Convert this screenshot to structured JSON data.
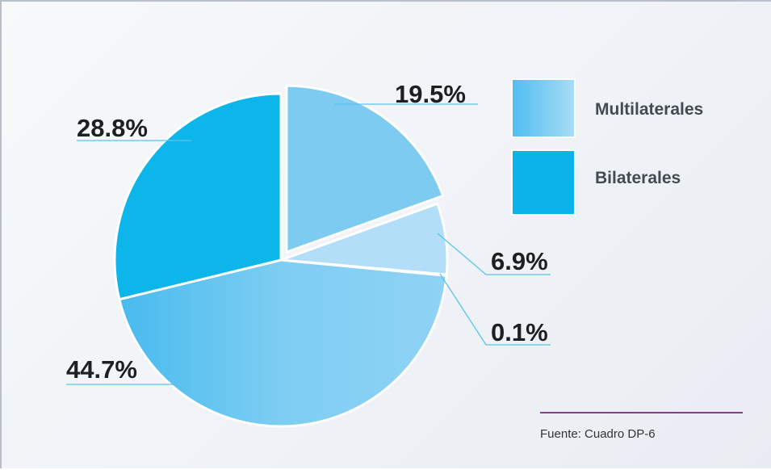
{
  "chart_data": {
    "type": "pie",
    "series": [
      {
        "label": "19.5%",
        "value": 19.5,
        "group": "Multilaterales",
        "color": "#7ecbf2",
        "exploded": true
      },
      {
        "label": "6.9%",
        "value": 6.9,
        "group": "Multilaterales",
        "color": "#b3def7",
        "exploded": false
      },
      {
        "label": "0.1%",
        "value": 0.1,
        "group": "Multilaterales",
        "color": "#8dd0f3",
        "exploded": false
      },
      {
        "label": "44.7%",
        "value": 44.7,
        "group": "Multilaterales",
        "color": "#6ec6f1",
        "exploded": false
      },
      {
        "label": "28.8%",
        "value": 28.8,
        "group": "Bilaterales",
        "color": "#0cb6ea",
        "exploded": false
      }
    ],
    "legend": [
      {
        "name": "Multilaterales",
        "color": "#7fcdf3"
      },
      {
        "name": "Bilaterales",
        "color": "#0ab4ea"
      }
    ],
    "legend_position": "top-right",
    "source": "Fuente: Cuadro DP-6"
  },
  "colors": {
    "leader_line": "#5bc3ec",
    "source_rule": "#8a3a8e",
    "slice_border": "#ffffff"
  }
}
